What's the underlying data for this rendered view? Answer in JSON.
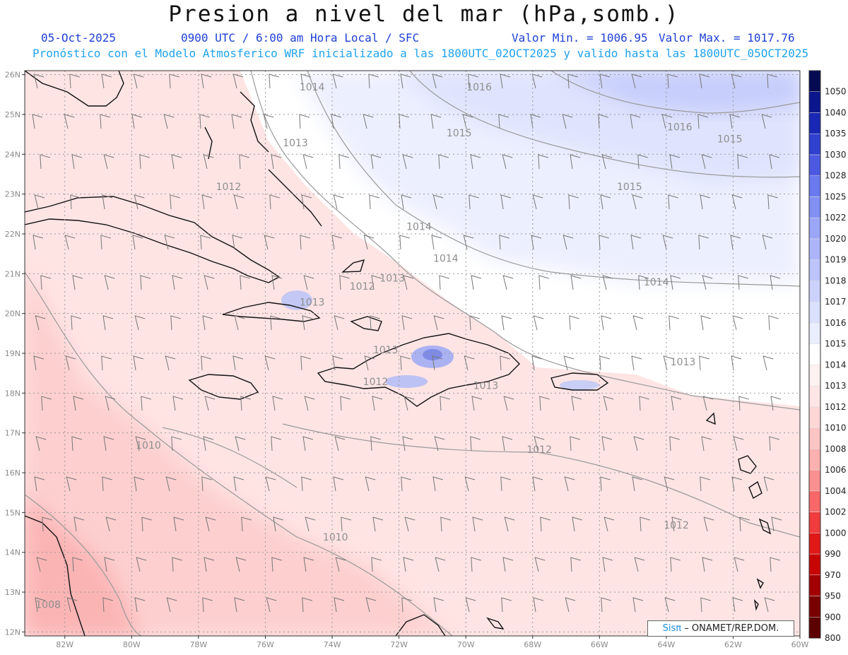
{
  "title": "Presion a nivel del mar (hPa,somb.)",
  "date": "05-Oct-2025",
  "time_info": "0900 UTC / 6:00 am Hora Local / SFC",
  "min_label": "Valor Min. = 1006.95",
  "max_label": "Valor Max. = 1017.76",
  "forecast_info": "Pronóstico con el Modelo Atmosferico WRF inicializado a las 1800UTC_02OCT2025 y valido hasta las  1800UTC_05OCT2025",
  "credit": {
    "brand": "Sisπ",
    "text": "– ONAMET/REP.DOM."
  },
  "map": {
    "lon_range": [
      -83.2,
      -60
    ],
    "lat_range": [
      11.9,
      26.1
    ],
    "lon_ticks": [
      -82,
      -80,
      -78,
      -76,
      -74,
      -72,
      -70,
      -68,
      -66,
      -64,
      -62,
      -60
    ],
    "lon_tick_labels": [
      "82W",
      "80W",
      "78W",
      "76W",
      "74W",
      "72W",
      "70W",
      "68W",
      "66W",
      "64W",
      "62W",
      "60W"
    ],
    "lat_ticks": [
      12,
      13,
      14,
      15,
      16,
      17,
      18,
      19,
      20,
      21,
      22,
      23,
      24,
      25,
      26
    ],
    "lat_tick_labels": [
      "12N",
      "13N",
      "14N",
      "15N",
      "16N",
      "17N",
      "18N",
      "19N",
      "20N",
      "21N",
      "22N",
      "23N",
      "24N",
      "25N",
      "26N"
    ],
    "contour_labels": [
      {
        "text": "1014",
        "lon": -74.6,
        "lat": 25.6
      },
      {
        "text": "1016",
        "lon": -69.6,
        "lat": 25.6
      },
      {
        "text": "1015",
        "lon": -70.2,
        "lat": 24.45
      },
      {
        "text": "1016",
        "lon": -63.6,
        "lat": 24.6
      },
      {
        "text": "1015",
        "lon": -62.1,
        "lat": 24.3
      },
      {
        "text": "1013",
        "lon": -75.1,
        "lat": 24.2
      },
      {
        "text": "1012",
        "lon": -77.1,
        "lat": 23.1
      },
      {
        "text": "1015",
        "lon": -65.1,
        "lat": 23.1
      },
      {
        "text": "1014",
        "lon": -71.4,
        "lat": 22.1
      },
      {
        "text": "1014",
        "lon": -70.6,
        "lat": 21.3
      },
      {
        "text": "1013",
        "lon": -72.2,
        "lat": 20.8
      },
      {
        "text": "1014",
        "lon": -64.3,
        "lat": 20.7
      },
      {
        "text": "1012",
        "lon": -73.1,
        "lat": 20.6
      },
      {
        "text": "1013",
        "lon": -74.6,
        "lat": 20.2
      },
      {
        "text": "1013",
        "lon": -72.4,
        "lat": 19.0
      },
      {
        "text": "1013",
        "lon": -63.5,
        "lat": 18.7
      },
      {
        "text": "1012",
        "lon": -72.7,
        "lat": 18.2
      },
      {
        "text": "1013",
        "lon": -69.4,
        "lat": 18.1
      },
      {
        "text": "1010",
        "lon": -79.5,
        "lat": 16.6
      },
      {
        "text": "1012",
        "lon": -67.8,
        "lat": 16.5
      },
      {
        "text": "1012",
        "lon": -63.7,
        "lat": 14.6
      },
      {
        "text": "1010",
        "lon": -73.9,
        "lat": 14.3
      },
      {
        "text": "1008",
        "lon": -82.5,
        "lat": 12.6
      }
    ]
  },
  "legend": {
    "levels": [
      "800",
      "900",
      "950",
      "970",
      "990",
      "1000",
      "1002",
      "1004",
      "1006",
      "1008",
      "1010",
      "1012",
      "1013",
      "1014",
      "1015",
      "1016",
      "1017",
      "1018",
      "1019",
      "1020",
      "1022",
      "1025",
      "1028",
      "1030",
      "1035",
      "1040",
      "1050"
    ],
    "colors": [
      "#5c0000",
      "#7a0000",
      "#a30000",
      "#c80505",
      "#e01818",
      "#f03c3c",
      "#f86868",
      "#fb9090",
      "#fdb0b0",
      "#fdc4c4",
      "#fed6d6",
      "#ffe6e6",
      "#fff1f1",
      "#ffffff",
      "#ebeefe",
      "#dbe0fd",
      "#ccd2fc",
      "#bcc4fb",
      "#acb5f9",
      "#9ca6f7",
      "#8290f3",
      "#6a7aee",
      "#4c5ae2",
      "#3040d0",
      "#1828b4",
      "#0c168c",
      "#050a52"
    ]
  }
}
